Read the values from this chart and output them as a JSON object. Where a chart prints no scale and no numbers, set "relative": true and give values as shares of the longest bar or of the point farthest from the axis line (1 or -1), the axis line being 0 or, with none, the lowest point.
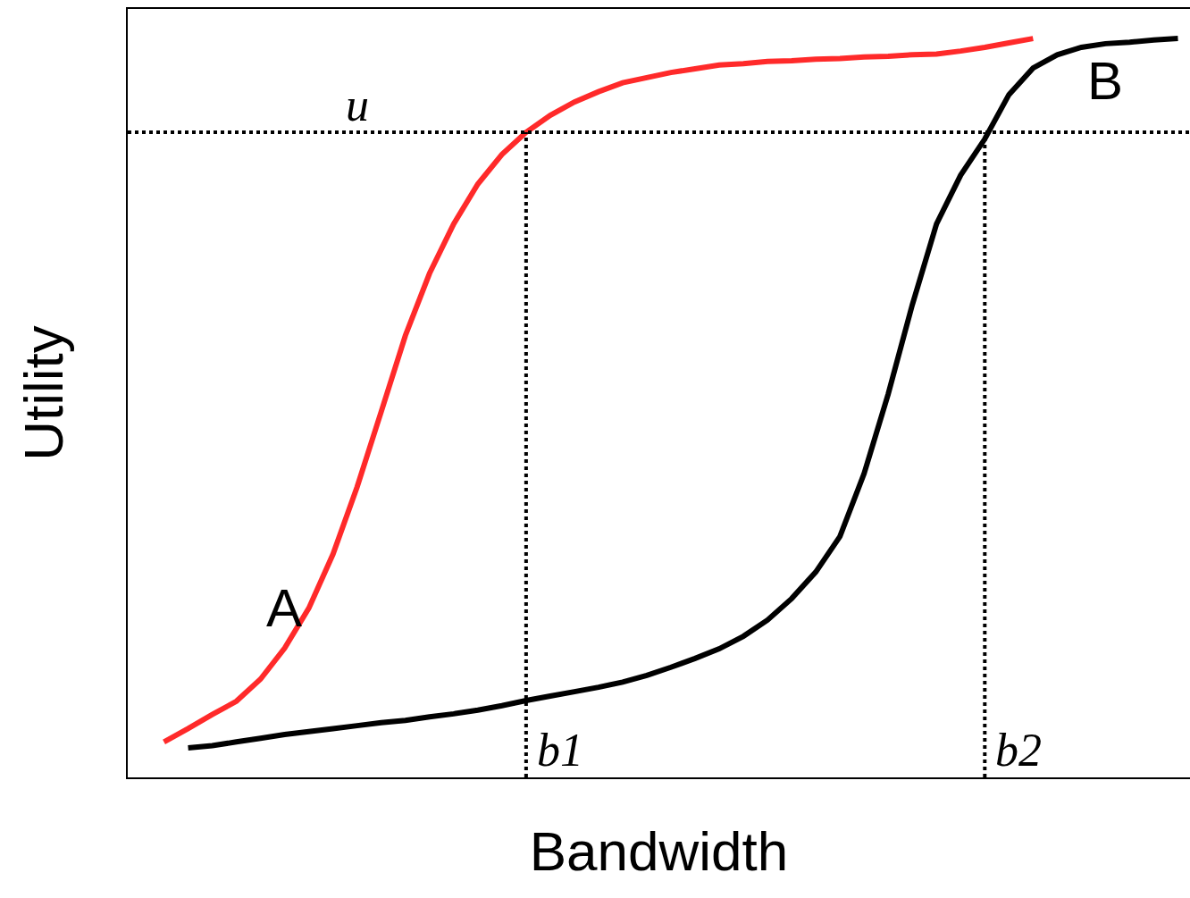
{
  "chart_data": {
    "type": "line",
    "relative": true,
    "xlabel": "Bandwidth",
    "ylabel": "Utility",
    "legend": false,
    "grid": false,
    "marker": "none",
    "line_style": "solid",
    "categories": [
      null,
      null,
      null,
      null,
      null,
      null,
      null,
      null,
      null,
      null,
      null,
      null,
      null,
      null,
      null,
      null,
      null,
      null,
      null,
      null,
      null,
      null,
      null,
      null,
      null,
      null,
      null,
      null,
      null,
      null,
      null,
      null,
      null,
      null,
      null,
      null,
      null,
      null,
      null,
      null,
      null,
      null,
      null,
      null
    ],
    "series": [
      {
        "name": "A",
        "color": "#ff2a2a",
        "values": [
          null,
          0.048,
          0.066,
          0.085,
          0.103,
          0.133,
          0.175,
          0.229,
          0.302,
          0.393,
          0.495,
          0.598,
          0.682,
          0.749,
          0.803,
          0.843,
          0.873,
          0.896,
          0.914,
          0.928,
          0.94,
          0.947,
          0.954,
          0.959,
          0.964,
          0.966,
          0.969,
          0.97,
          0.972,
          0.973,
          0.975,
          0.976,
          0.978,
          0.979,
          0.983,
          0.988,
          0.994,
          1.0,
          null,
          null,
          null,
          null,
          null,
          null
        ]
      },
      {
        "name": "B",
        "color": "#000000",
        "values": [
          null,
          null,
          0.04,
          0.043,
          0.048,
          0.053,
          0.058,
          0.062,
          0.066,
          0.07,
          0.074,
          0.077,
          0.082,
          0.086,
          0.091,
          0.097,
          0.104,
          0.11,
          0.116,
          0.122,
          0.129,
          0.138,
          0.149,
          0.161,
          0.174,
          0.191,
          0.213,
          0.242,
          0.278,
          0.326,
          0.411,
          0.519,
          0.64,
          0.749,
          0.815,
          0.864,
          0.924,
          0.96,
          0.978,
          0.988,
          0.993,
          0.995,
          0.998,
          1.0
        ]
      }
    ],
    "ref_lines": [
      {
        "axis": "y",
        "value": 0.873,
        "label": "u",
        "color": "#000000",
        "line_style": "dotted"
      }
    ],
    "annotations": [
      "b1",
      "b2"
    ]
  }
}
